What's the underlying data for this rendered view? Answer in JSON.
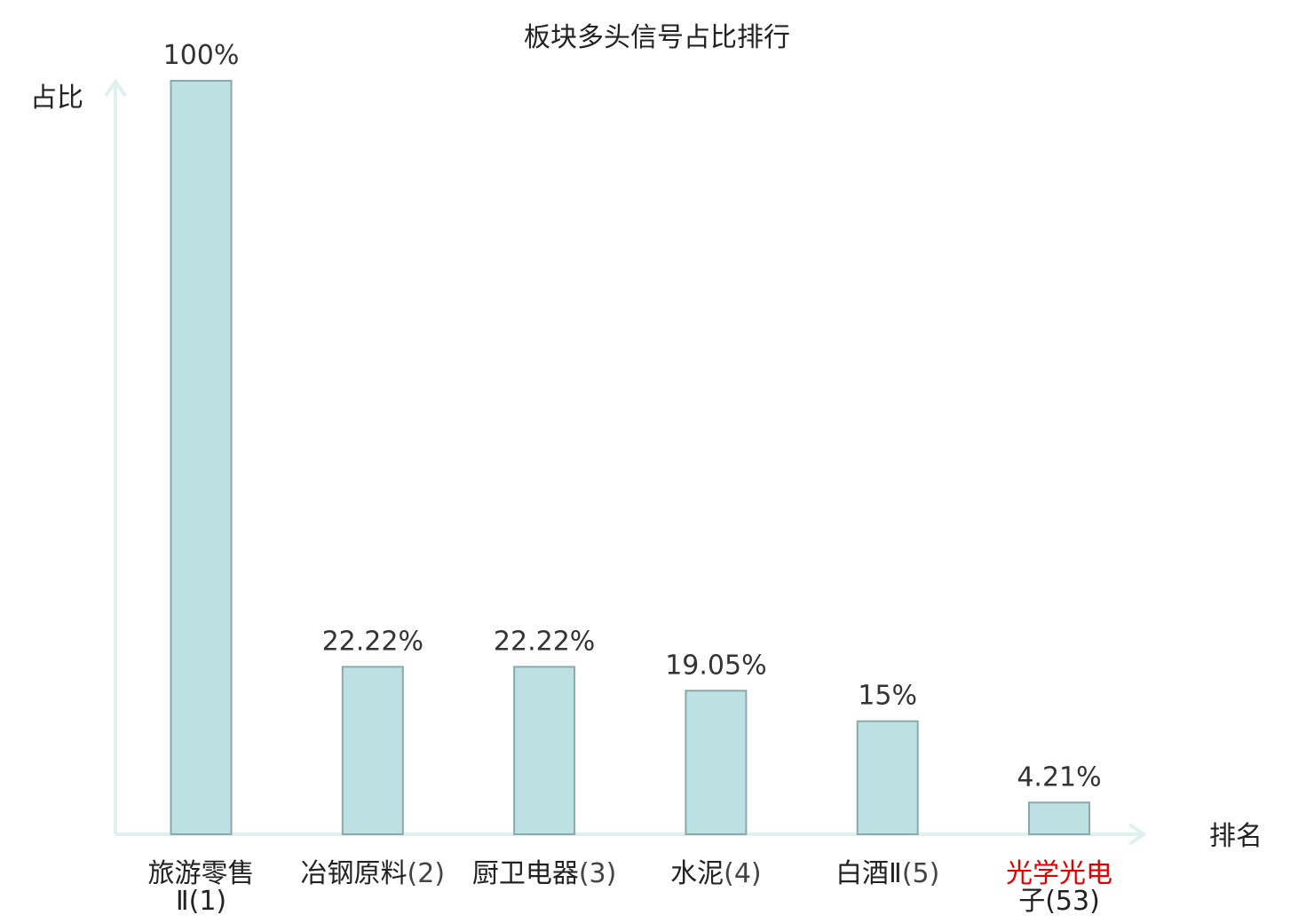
{
  "chart_data": {
    "type": "bar",
    "title": "板块多头信号占比排行",
    "ylabel": "占比",
    "xlabel": "排名",
    "ylim": [
      0,
      100
    ],
    "categories": [
      {
        "name": "旅游零售",
        "name2": "Ⅱ(1)",
        "highlight": false
      },
      {
        "name": "冶钢原料",
        "suffix": "(2)",
        "highlight": false
      },
      {
        "name": "厨卫电器",
        "suffix": "(3)",
        "highlight": false
      },
      {
        "name": "水泥",
        "suffix": "(4)",
        "highlight": false
      },
      {
        "name": "白酒Ⅱ",
        "suffix": "(5)",
        "highlight": false
      },
      {
        "name": "光学光电",
        "name2": "子(53)",
        "highlight": true
      }
    ],
    "values": [
      100,
      22.22,
      22.22,
      19.05,
      15,
      4.21
    ],
    "value_labels": [
      "100%",
      "22.22%",
      "22.22%",
      "19.05%",
      "15%",
      "4.21%"
    ],
    "colors": {
      "bar_fill": "#bde0e3",
      "bar_stroke": "#8aa9ad",
      "axis": "#dff1ef",
      "highlight_text": "#e00000"
    },
    "grid": false,
    "legend": "none"
  }
}
